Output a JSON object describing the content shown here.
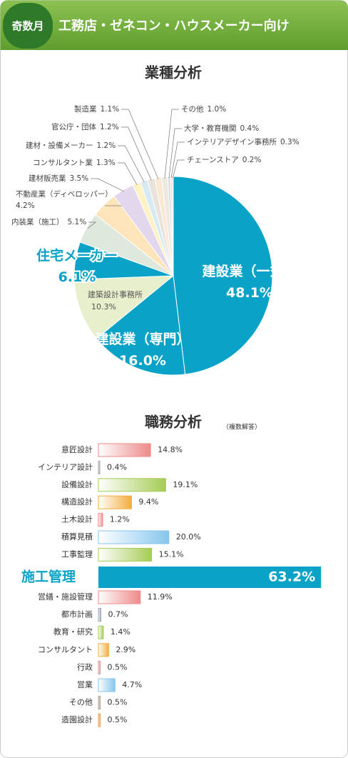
{
  "header": {
    "badge": "奇数月",
    "title": "工務店・ゼネコン・ハウスメーカー向け"
  },
  "chart_data": [
    {
      "type": "pie",
      "title": "業種分析",
      "categories": [
        "建設業（一式）",
        "建設業（専門）",
        "建築設計事務所",
        "住宅メーカー",
        "内装業（施工）",
        "不動産業（ディベロッパー）",
        "建材販売業",
        "コンサルタント業",
        "建材・設備メーカー",
        "官公庁・団体",
        "製造業",
        "その他",
        "大学・教育機関",
        "インテリアデザイン事務所",
        "チェーンストア"
      ],
      "values": [
        48.1,
        16.0,
        10.3,
        6.1,
        5.1,
        4.2,
        3.5,
        1.3,
        1.2,
        1.2,
        1.1,
        1.0,
        0.4,
        0.3,
        0.2
      ],
      "value_labels": [
        "48.1%",
        "16.0%",
        "10.3%",
        "6.1%",
        "5.1%",
        "4.2%",
        "3.5%",
        "1.3%",
        "1.2%",
        "1.2%",
        "1.1%",
        "1.0%",
        "0.4%",
        "0.3%",
        "0.2%"
      ],
      "colors": [
        "#0aa3c7",
        "#0aa3c7",
        "#e8efcc",
        "#0aa3c7",
        "#dfe8dd",
        "#fde4bb",
        "#e2d7ec",
        "#fdf2c4",
        "#d6eaf3",
        "#e9e3dc",
        "#fbe8d2",
        "#ece8e2",
        "#d9d9d9",
        "#f2dcd8",
        "#cfcfcf"
      ]
    },
    {
      "type": "bar",
      "title": "職務分析",
      "subtitle": "（複数解答）",
      "orientation": "horizontal",
      "categories": [
        "意匠設計",
        "インテリア設計",
        "設備設計",
        "構造設計",
        "土木設計",
        "積算見積",
        "工事監理",
        "施工管理",
        "営繕・施設管理",
        "都市計画",
        "教育・研究",
        "コンサルタント",
        "行政",
        "営業",
        "その他",
        "造園設計"
      ],
      "values": [
        14.8,
        0.4,
        19.1,
        9.4,
        1.2,
        20.0,
        15.1,
        63.2,
        11.9,
        0.7,
        1.4,
        2.9,
        0.5,
        4.7,
        0.5,
        0.5
      ],
      "value_labels": [
        "14.8%",
        "0.4%",
        "19.1%",
        "9.4%",
        "1.2%",
        "20.0%",
        "15.1%",
        "63.2%",
        "11.9%",
        "0.7%",
        "1.4%",
        "2.9%",
        "0.5%",
        "4.7%",
        "0.5%",
        "0.5%"
      ],
      "colors": [
        "#ee8a8a",
        "#aaaaaa",
        "#a6cc55",
        "#f3ad3f",
        "#ee8a8a",
        "#86c6ee",
        "#a6cc55",
        "#0aa3c7",
        "#ee8a8a",
        "#9aa7b8",
        "#a6cc55",
        "#f3ad3f",
        "#d99a9a",
        "#86c6ee",
        "#b0a090",
        "#e0a060"
      ]
    }
  ]
}
